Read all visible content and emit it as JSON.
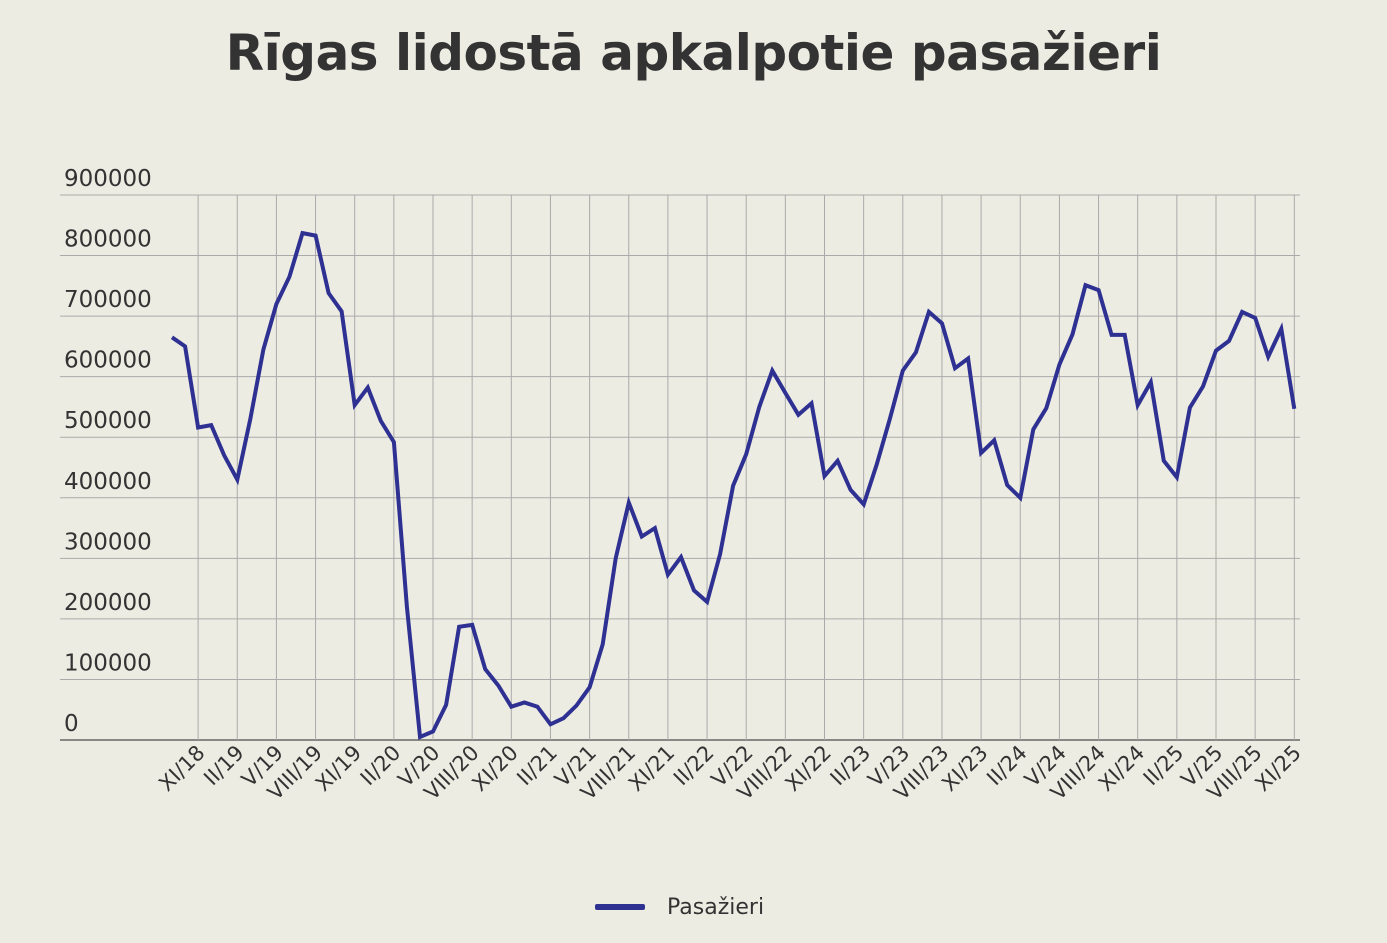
{
  "chart_data": {
    "type": "line",
    "title": "Rīgas lidostā apkalpotie pasažieri",
    "xlabel": "",
    "ylabel": "",
    "ylim": [
      0,
      900000
    ],
    "yticks": [
      "0",
      "100000",
      "200000",
      "300000",
      "400000",
      "500000",
      "600000",
      "700000",
      "800000",
      "900000"
    ],
    "tick_labels": [
      "XI/18",
      "II/19",
      "V/19",
      "VIII/19",
      "XI/19",
      "II/20",
      "V/20",
      "VIII/20",
      "XI/20",
      "II/21",
      "V/21",
      "VIII/21",
      "XI/21",
      "II/22",
      "V/22",
      "VIII/22",
      "XI/22",
      "II/23",
      "V/23",
      "VIII/23",
      "XI/23",
      "II/24",
      "V/24",
      "VIII/24",
      "XI/24",
      "II/25",
      "V/25",
      "VIII/25",
      "XI/25"
    ],
    "grid": true,
    "legend_position": "bottom",
    "series": [
      {
        "name": "Pasažieri",
        "color": "#2e3192",
        "values": [
          665000,
          650000,
          516000,
          520000,
          470000,
          430000,
          530000,
          645000,
          720000,
          765000,
          837000,
          833000,
          738000,
          708000,
          553000,
          582000,
          527000,
          492000,
          220000,
          5000,
          14000,
          58000,
          187000,
          190000,
          117000,
          90000,
          55000,
          62000,
          55000,
          26000,
          36000,
          57000,
          87000,
          158000,
          300000,
          392000,
          336000,
          350000,
          273000,
          302000,
          247000,
          228000,
          307000,
          420000,
          472000,
          550000,
          610000,
          573000,
          537000,
          556000,
          436000,
          461000,
          413000,
          389000,
          455000,
          530000,
          610000,
          640000,
          707000,
          688000,
          614000,
          630000,
          474000,
          495000,
          421000,
          400000,
          513000,
          548000,
          620000,
          670000,
          751000,
          743000,
          669000,
          669000,
          553000,
          591000,
          461000,
          434000,
          549000,
          584000,
          643000,
          659000,
          707000,
          697000,
          633000,
          679000,
          547000
        ]
      }
    ]
  }
}
